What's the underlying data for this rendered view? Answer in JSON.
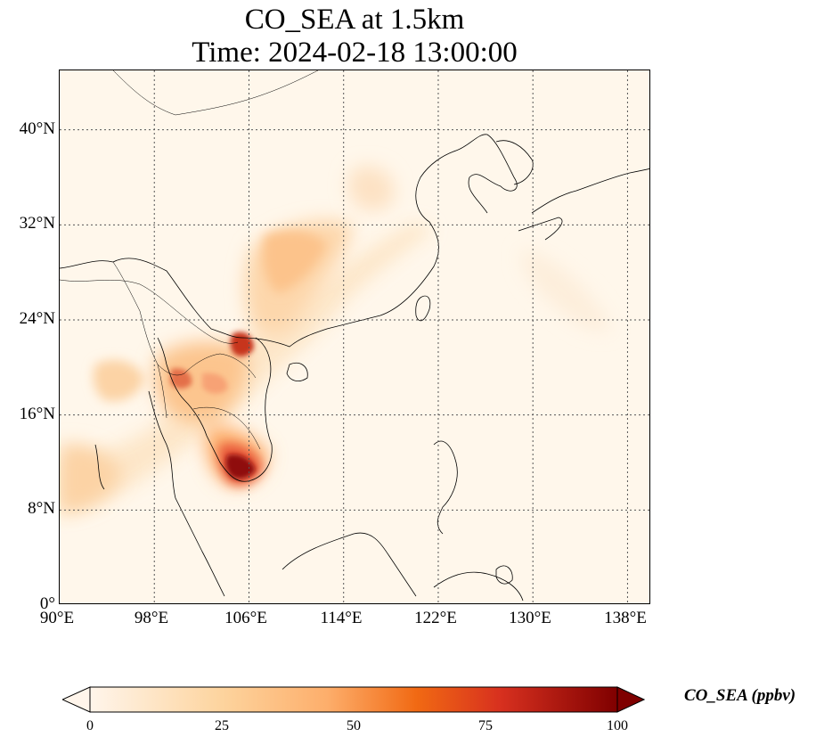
{
  "title": {
    "line1": "CO_SEA at 1.5km",
    "line2": "Time: 2024-02-18 13:00:00"
  },
  "map": {
    "lon_range": [
      90,
      140
    ],
    "lat_range": [
      0,
      45
    ],
    "lat_ticks": [
      {
        "value": 0,
        "label": "0°"
      },
      {
        "value": 8,
        "label": "8°N"
      },
      {
        "value": 16,
        "label": "16°N"
      },
      {
        "value": 24,
        "label": "24°N"
      },
      {
        "value": 32,
        "label": "32°N"
      },
      {
        "value": 40,
        "label": "40°N"
      }
    ],
    "lon_ticks": [
      {
        "value": 90,
        "label": "90°E"
      },
      {
        "value": 98,
        "label": "98°E"
      },
      {
        "value": 106,
        "label": "106°E"
      },
      {
        "value": 114,
        "label": "114°E"
      },
      {
        "value": 122,
        "label": "122°E"
      },
      {
        "value": 130,
        "label": "130°E"
      },
      {
        "value": 138,
        "label": "138°E"
      }
    ],
    "gridlines": "dotted"
  },
  "colorbar": {
    "label": "CO_SEA (ppbv)",
    "ticks": [
      "0",
      "25",
      "50",
      "75",
      "100"
    ],
    "range": [
      0,
      100
    ],
    "extend": "both",
    "colors": [
      "#fff5eb",
      "#fdd49e",
      "#fdae6b",
      "#f16913",
      "#d7301f",
      "#7f0000"
    ]
  }
}
